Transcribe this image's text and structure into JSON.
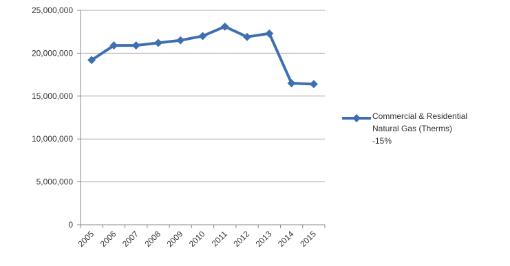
{
  "chart_data": {
    "type": "line",
    "categories": [
      "2005",
      "2006",
      "2007",
      "2008",
      "2009",
      "2010",
      "2011",
      "2012",
      "2013",
      "2014",
      "2015"
    ],
    "series": [
      {
        "name": "Commercial & Residential Natural Gas (Therms) -15%",
        "values": [
          19200000,
          20900000,
          20900000,
          21200000,
          21500000,
          22000000,
          23100000,
          21900000,
          22300000,
          16500000,
          16400000
        ],
        "color": "#3d6fb1"
      }
    ],
    "yticks": [
      "0",
      "5,000,000",
      "10,000,000",
      "15,000,000",
      "20,000,000",
      "25,000,000"
    ],
    "ylim": [
      0,
      25000000
    ],
    "grid": true,
    "legend_position": "right"
  },
  "legend": {
    "line1": "Commercial & Residential",
    "line2": "Natural Gas (Therms)",
    "line3": "-15%"
  }
}
